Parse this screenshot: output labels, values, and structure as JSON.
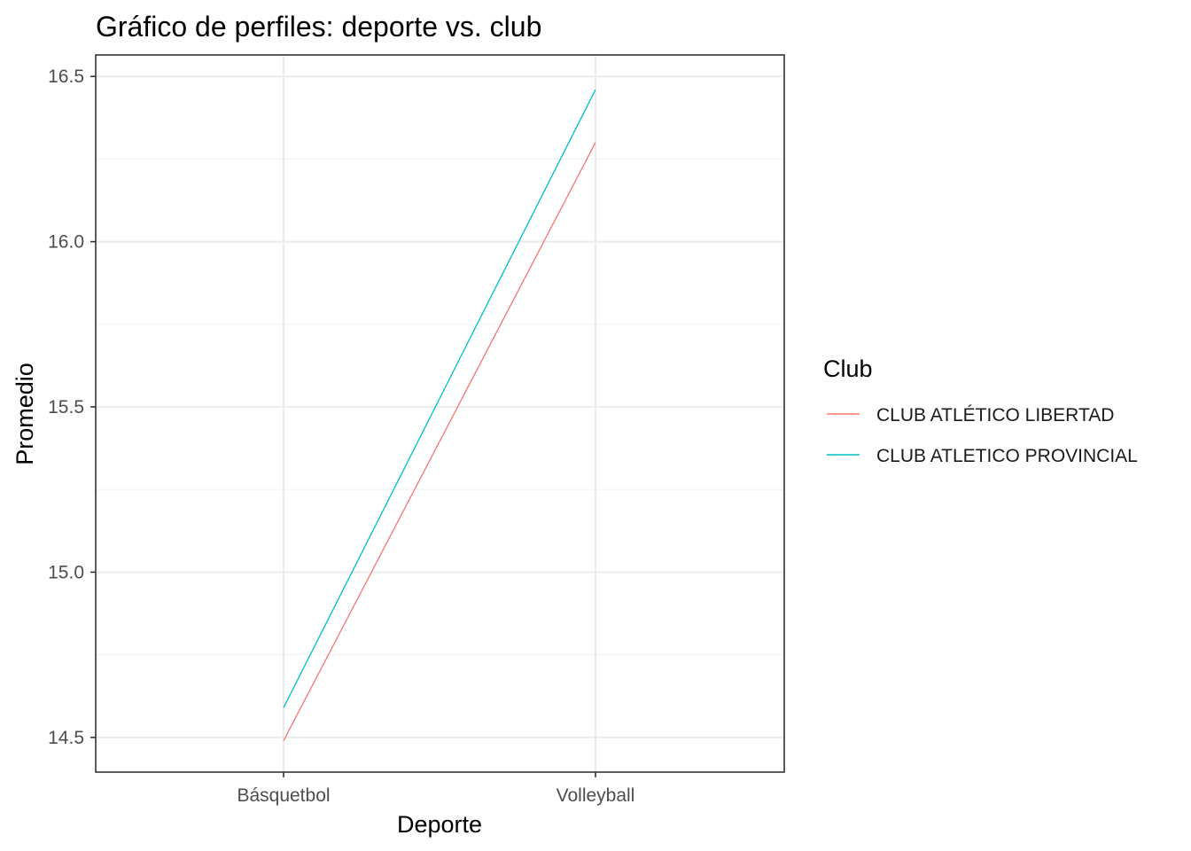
{
  "chart_data": {
    "type": "line",
    "title": "Gráfico de perfiles: deporte vs. club",
    "xlabel": "Deporte",
    "ylabel": "Promedio",
    "categories": [
      "Básquetbol",
      "Volleyball"
    ],
    "ylim": [
      14.395,
      16.565
    ],
    "y_major_ticks": [
      14.5,
      15.0,
      15.5,
      16.0,
      16.5
    ],
    "y_tick_labels": [
      "14.5",
      "15.0",
      "15.5",
      "16.0",
      "16.5"
    ],
    "y_minor_ticks": [
      14.75,
      15.25,
      15.75,
      16.25
    ],
    "grid": true,
    "legend": {
      "title": "Club",
      "position": "right"
    },
    "series": [
      {
        "name": "CLUB ATLÉTICO LIBERTAD",
        "color": "#F8766D",
        "values": [
          14.49,
          16.3
        ]
      },
      {
        "name": "CLUB ATLETICO PROVINCIAL",
        "color": "#00BFC4",
        "values": [
          14.59,
          16.46
        ]
      }
    ]
  }
}
